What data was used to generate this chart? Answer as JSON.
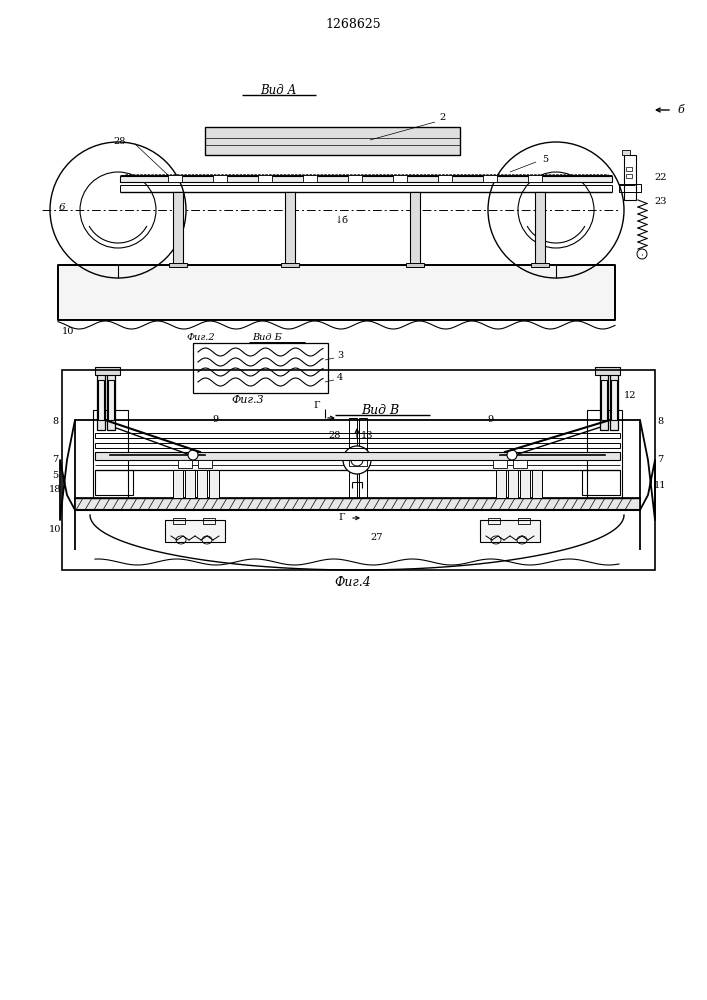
{
  "title": "1268625",
  "bg_color": "#ffffff",
  "fig1_label": "Вид А",
  "fig3_label": "Фиг.3",
  "fig4_label": "Фиг.4",
  "fig4_title": "Вид В",
  "fig2_label": "Фиг.2",
  "fig2_sublabel": "Вид Б"
}
